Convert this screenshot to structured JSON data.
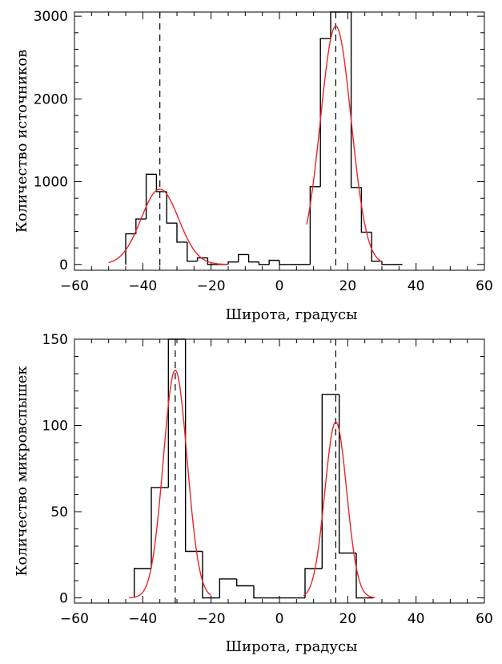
{
  "chart_data": [
    {
      "type": "histogram",
      "xlabel": "Широта, градусы",
      "ylabel": "Количество источников",
      "xlim": [
        -60,
        60
      ],
      "ylim": [
        -70,
        3050
      ],
      "x_ticks": [
        -60,
        -40,
        -20,
        0,
        20,
        40,
        60
      ],
      "y_ticks": [
        0,
        1000,
        2000,
        3000
      ],
      "bin_width": 3,
      "bins": [
        {
          "x0": -45,
          "value": 370
        },
        {
          "x0": -42,
          "value": 550
        },
        {
          "x0": -39,
          "value": 1090
        },
        {
          "x0": -36,
          "value": 880
        },
        {
          "x0": -33,
          "value": 500
        },
        {
          "x0": -30,
          "value": 270
        },
        {
          "x0": -27,
          "value": 40
        },
        {
          "x0": -24,
          "value": 80
        },
        {
          "x0": -21,
          "value": 0
        },
        {
          "x0": -18,
          "value": 0
        },
        {
          "x0": -15,
          "value": 30
        },
        {
          "x0": -12,
          "value": 120
        },
        {
          "x0": -9,
          "value": 30
        },
        {
          "x0": -6,
          "value": 0
        },
        {
          "x0": -3,
          "value": 50
        },
        {
          "x0": 0,
          "value": 0
        },
        {
          "x0": 3,
          "value": 0
        },
        {
          "x0": 6,
          "value": 0
        },
        {
          "x0": 9,
          "value": 940
        },
        {
          "x0": 12,
          "value": 2730
        },
        {
          "x0": 15,
          "value": 3050
        },
        {
          "x0": 18,
          "value": 3050
        },
        {
          "x0": 21,
          "value": 930
        },
        {
          "x0": 24,
          "value": 390
        },
        {
          "x0": 27,
          "value": 40
        },
        {
          "x0": 30,
          "value": 0
        },
        {
          "x0": 33,
          "value": 0
        }
      ],
      "gaussians": [
        {
          "amplitude": 910,
          "center": -35,
          "sigma": 5.5,
          "range": [
            -50,
            -15
          ]
        },
        {
          "amplitude": 2880,
          "center": 16.5,
          "sigma": 4.5,
          "range": [
            8,
            30
          ]
        }
      ],
      "vlines": [
        -35,
        16.5
      ],
      "colors": {
        "histogram": "#000000",
        "fit": "#e8262a",
        "vline": "#000000"
      }
    },
    {
      "type": "histogram",
      "xlabel": "Широта, градусы",
      "ylabel": "Количество микровспышек",
      "xlim": [
        -60,
        60
      ],
      "ylim": [
        -3,
        150
      ],
      "x_ticks": [
        -60,
        -40,
        -20,
        0,
        20,
        40,
        60
      ],
      "y_ticks": [
        0,
        50,
        100,
        150
      ],
      "bin_width": 5,
      "bins": [
        {
          "x0": -42.5,
          "value": 17
        },
        {
          "x0": -37.5,
          "value": 64
        },
        {
          "x0": -32.5,
          "value": 150
        },
        {
          "x0": -27.5,
          "value": 27
        },
        {
          "x0": -22.5,
          "value": 0
        },
        {
          "x0": -17.5,
          "value": 11
        },
        {
          "x0": -12.5,
          "value": 7
        },
        {
          "x0": -7.5,
          "value": 0
        },
        {
          "x0": -2.5,
          "value": 0
        },
        {
          "x0": 2.5,
          "value": 0
        },
        {
          "x0": 7.5,
          "value": 17
        },
        {
          "x0": 12.5,
          "value": 118
        },
        {
          "x0": 17.5,
          "value": 26
        },
        {
          "x0": 22.5,
          "value": 0
        }
      ],
      "gaussians": [
        {
          "amplitude": 132,
          "center": -30.5,
          "sigma": 3.5,
          "range": [
            -44,
            -20
          ]
        },
        {
          "amplitude": 102,
          "center": 16.5,
          "sigma": 3.2,
          "range": [
            7,
            28
          ]
        }
      ],
      "vlines": [
        -30.5,
        16.5
      ],
      "colors": {
        "histogram": "#000000",
        "fit": "#e8262a",
        "vline": "#000000"
      }
    }
  ]
}
